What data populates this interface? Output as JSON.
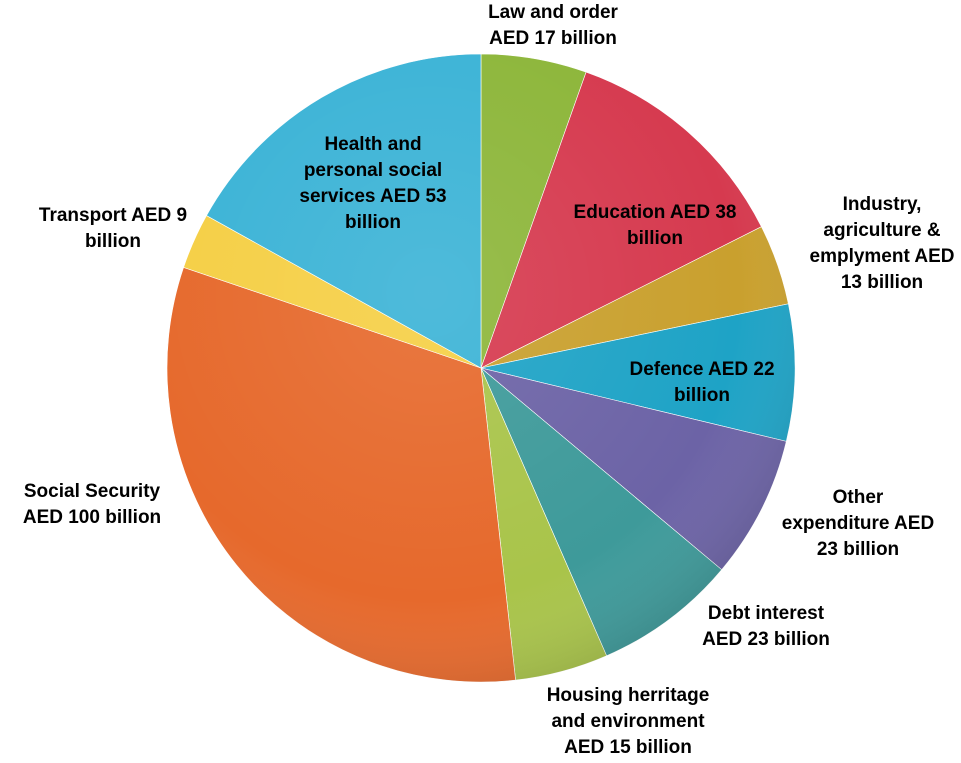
{
  "chart_data": {
    "type": "pie",
    "title": "",
    "slices": [
      {
        "name": "Law and order",
        "value": 17,
        "color": "#8db63a",
        "label_lines": [
          "Law and order",
          "AED 17 billion"
        ]
      },
      {
        "name": "Education",
        "value": 38,
        "color": "#d63a4f",
        "label_lines": [
          "Education AED 38",
          "billion"
        ]
      },
      {
        "name": "Industry, agriculture & emplyment",
        "value": 13,
        "color": "#c9a02e",
        "label_lines": [
          "Industry,",
          "agriculture &",
          "emplyment AED",
          "13 billion"
        ]
      },
      {
        "name": "Defence",
        "value": 22,
        "color": "#1ea3c6",
        "label_lines": [
          "Defence AED 22",
          "billion"
        ]
      },
      {
        "name": "Other expenditure",
        "value": 23,
        "color": "#6c63a6",
        "label_lines": [
          "Other",
          "expenditure AED",
          "23 billion"
        ]
      },
      {
        "name": "Debt interest",
        "value": 23,
        "color": "#3e9a9a",
        "label_lines": [
          "Debt interest",
          "AED 23 billion"
        ]
      },
      {
        "name": "Housing herritage and environment",
        "value": 15,
        "color": "#a9c44a",
        "label_lines": [
          "Housing herritage",
          "and environment",
          "AED 15 billion"
        ]
      },
      {
        "name": "Social Security",
        "value": 100,
        "color": "#e6692c",
        "label_lines": [
          "Social Security",
          "AED 100 billion"
        ]
      },
      {
        "name": "Transport",
        "value": 9,
        "color": "#f5cf45",
        "label_lines": [
          "Transport AED 9",
          "billion"
        ]
      },
      {
        "name": "Health and personal social services",
        "value": 53,
        "color": "#3bb3d6",
        "label_lines": [
          "Health and",
          "personal social",
          "services AED 53",
          "billion"
        ]
      }
    ]
  }
}
